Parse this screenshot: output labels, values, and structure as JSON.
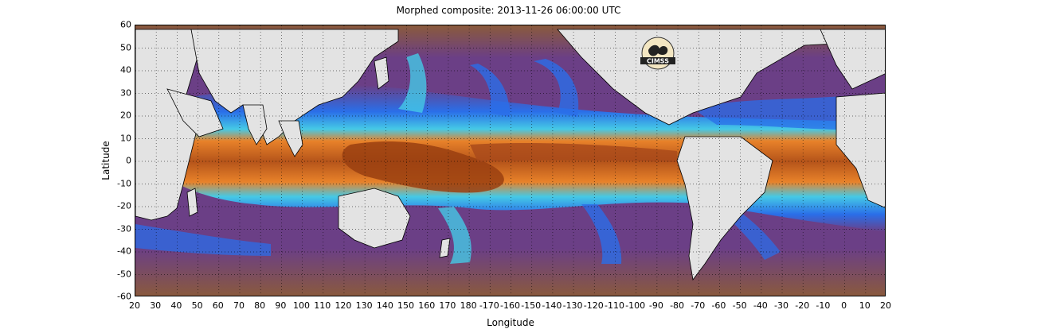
{
  "title": "Morphed composite: 2013-11-26 06:00:00 UTC",
  "x_label": "Longitude",
  "y_label": "Latitude",
  "x_ticks": [
    "20",
    "30",
    "40",
    "50",
    "60",
    "70",
    "80",
    "90",
    "100",
    "110",
    "120",
    "130",
    "140",
    "150",
    "160",
    "170",
    "180",
    "-170",
    "-160",
    "-150",
    "-140",
    "-130",
    "-120",
    "-110",
    "-100",
    "-90",
    "-80",
    "-70",
    "-60",
    "-50",
    "-40",
    "-30",
    "-20",
    "-10",
    "0",
    "10",
    "20"
  ],
  "y_ticks": [
    "60",
    "50",
    "40",
    "30",
    "20",
    "10",
    "0",
    "-10",
    "-20",
    "-30",
    "-40",
    "-50",
    "-60"
  ],
  "logo_text": "CIMSS",
  "colors": {
    "land": "#e3e3e3",
    "dry_brown": "#8a5a3c",
    "dry_purple": "#6b3f86",
    "moist_blue": "#2a6ee8",
    "moist_cyan": "#45c9e6",
    "moist_green": "#8fe09a",
    "wet_orange": "#e8822a",
    "very_wet": "#9a3f10"
  }
}
